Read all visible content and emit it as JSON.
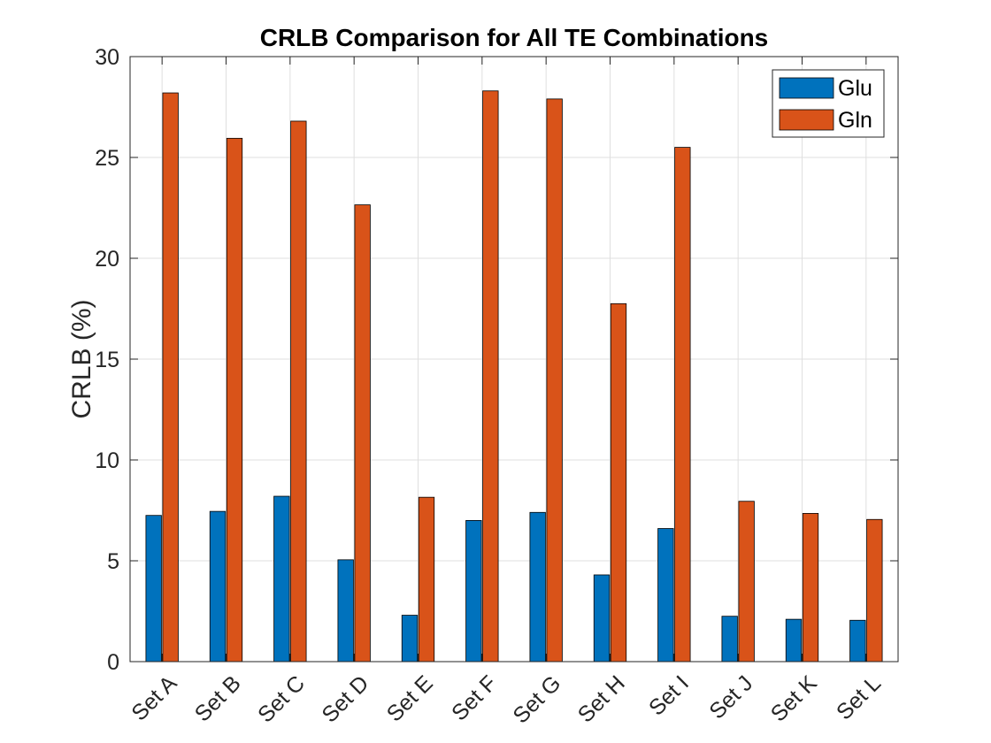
{
  "chart_data": {
    "type": "bar",
    "title": "CRLB Comparison for All TE Combinations",
    "xlabel": "",
    "ylabel": "CRLB (%)",
    "ylim": [
      0,
      30
    ],
    "yticks": [
      0,
      5,
      10,
      15,
      20,
      25,
      30
    ],
    "grid": true,
    "legend_position": "top-right",
    "categories": [
      "Set A",
      "Set B",
      "Set C",
      "Set D",
      "Set E",
      "Set F",
      "Set G",
      "Set H",
      "Set I",
      "Set J",
      "Set K",
      "Set L"
    ],
    "series": [
      {
        "name": "Glu",
        "color": "#0072BD",
        "values": [
          7.25,
          7.45,
          8.2,
          5.05,
          2.3,
          7.0,
          7.4,
          4.3,
          6.6,
          2.25,
          2.1,
          2.05
        ]
      },
      {
        "name": "Gln",
        "color": "#D95319",
        "values": [
          28.2,
          25.95,
          26.8,
          22.65,
          8.15,
          28.3,
          27.9,
          17.75,
          25.5,
          7.95,
          7.35,
          7.05
        ]
      }
    ]
  }
}
